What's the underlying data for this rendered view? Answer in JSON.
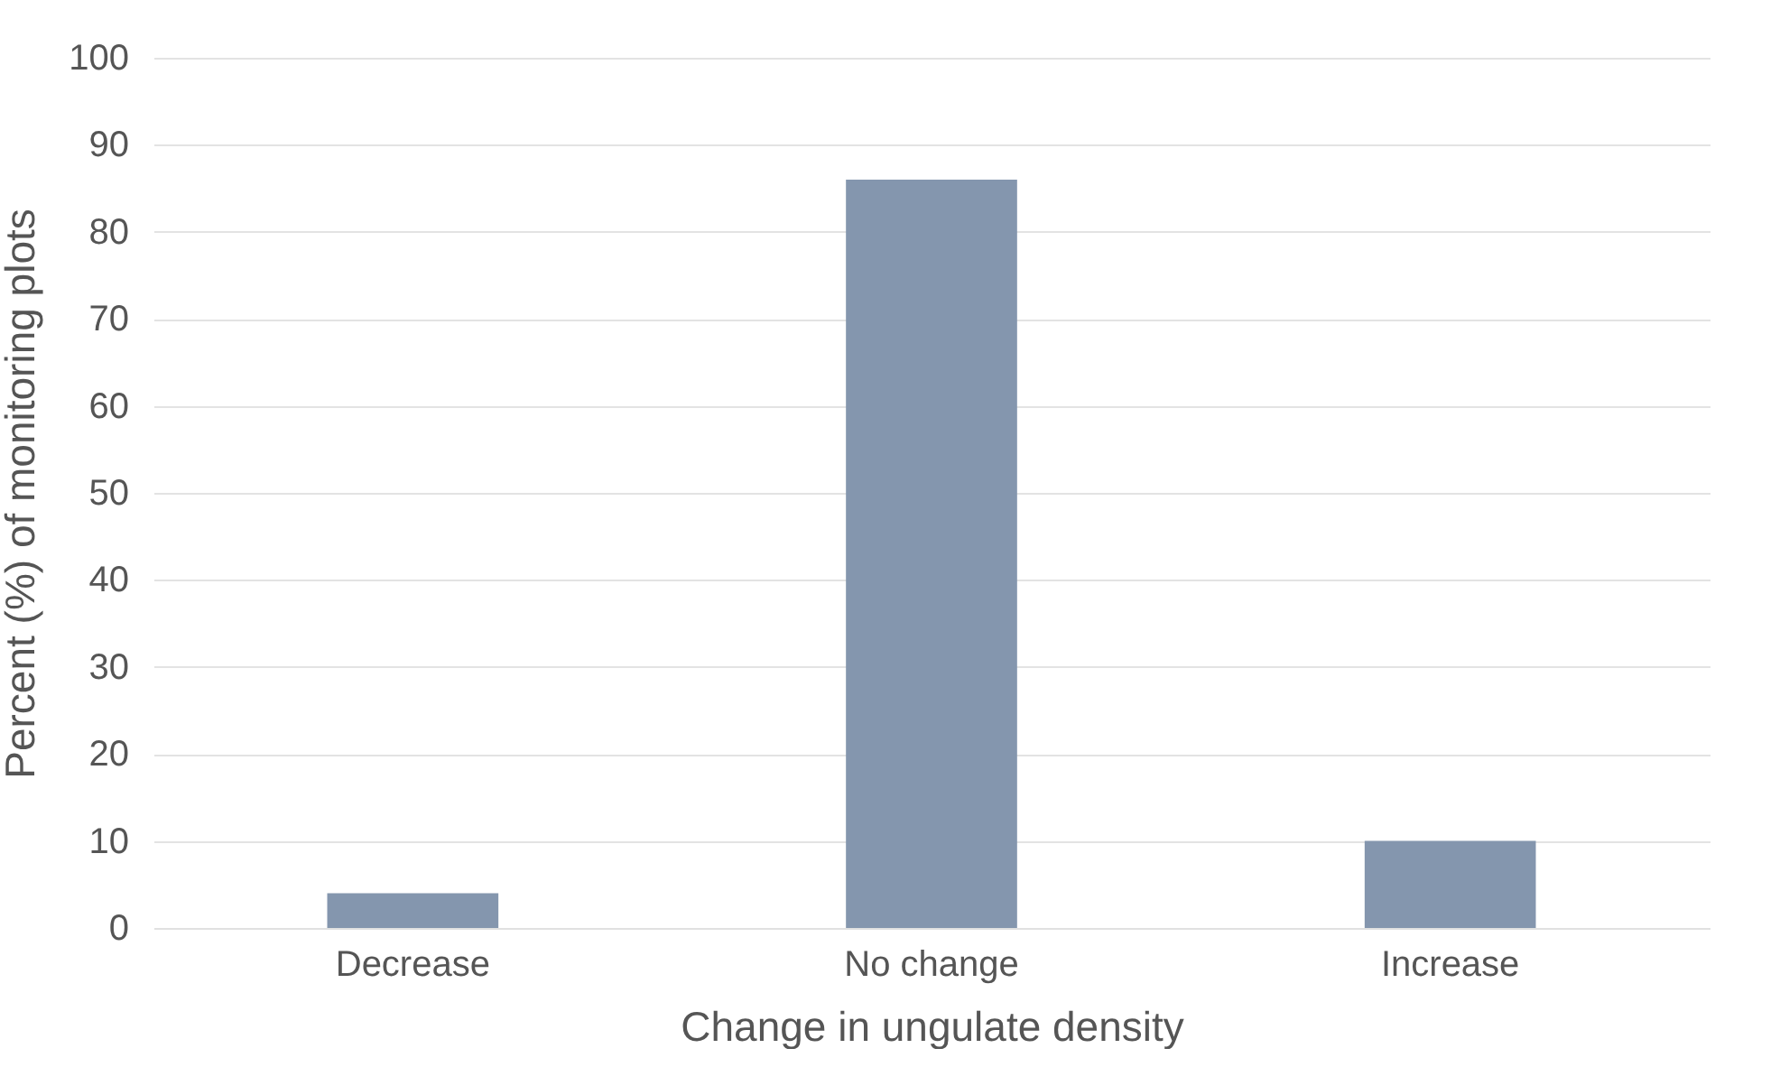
{
  "chart_data": {
    "type": "bar",
    "xlabel": "Change in ungulate density",
    "ylabel": "Percent (%) of monitoring plots",
    "categories": [
      "Decrease",
      "No change",
      "Increase"
    ],
    "values": [
      4,
      86,
      10
    ],
    "color": "#8496ae",
    "ylim": [
      0,
      100
    ],
    "yticks": [
      0,
      10,
      20,
      30,
      40,
      50,
      60,
      70,
      80,
      90,
      100
    ],
    "grid": "y"
  }
}
